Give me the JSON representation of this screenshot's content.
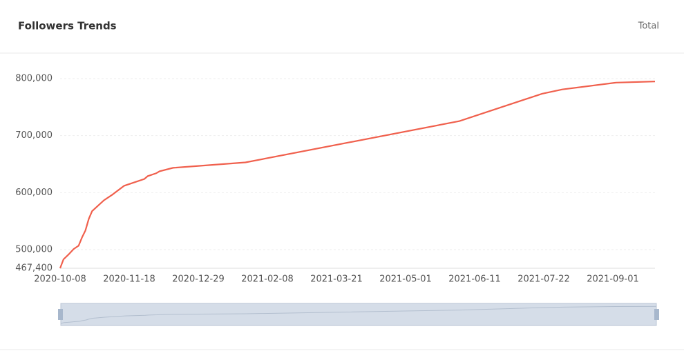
{
  "header": {
    "title": "Followers Trends",
    "filter": "Total"
  },
  "chart_data": {
    "type": "line",
    "x": [
      "2020-10-08",
      "2020-10-10",
      "2020-10-13",
      "2020-10-16",
      "2020-10-19",
      "2020-10-21",
      "2020-10-23",
      "2020-10-25",
      "2020-10-27",
      "2020-11-03",
      "2020-11-08",
      "2020-11-15",
      "2020-11-27",
      "2020-11-29",
      "2020-12-04",
      "2020-12-06",
      "2020-12-14",
      "2021-01-26",
      "2021-06-02",
      "2021-07-21",
      "2021-08-02",
      "2021-09-03",
      "2021-09-26"
    ],
    "series": [
      {
        "name": "Followers",
        "color": "#f0604d",
        "values": [
          467400,
          483000,
          491500,
          501000,
          507000,
          521500,
          533500,
          554000,
          567500,
          586500,
          596500,
          612000,
          624000,
          629000,
          634000,
          637500,
          643500,
          653000,
          725500,
          773500,
          781000,
          793000,
          795000
        ]
      }
    ],
    "xlim": [
      "2020-10-08",
      "2021-09-26"
    ],
    "xticks": [
      "2020-10-08",
      "2020-11-18",
      "2020-12-29",
      "2021-02-08",
      "2021-03-21",
      "2021-05-01",
      "2021-06-11",
      "2021-07-22",
      "2021-09-01"
    ],
    "ylim": [
      467400,
      800000
    ],
    "yticks": [
      {
        "value": 467400,
        "label": "467,400"
      },
      {
        "value": 500000,
        "label": "500,000"
      },
      {
        "value": 600000,
        "label": "600,000"
      },
      {
        "value": 700000,
        "label": "700,000"
      },
      {
        "value": 800000,
        "label": "800,000"
      }
    ],
    "grid": true
  }
}
